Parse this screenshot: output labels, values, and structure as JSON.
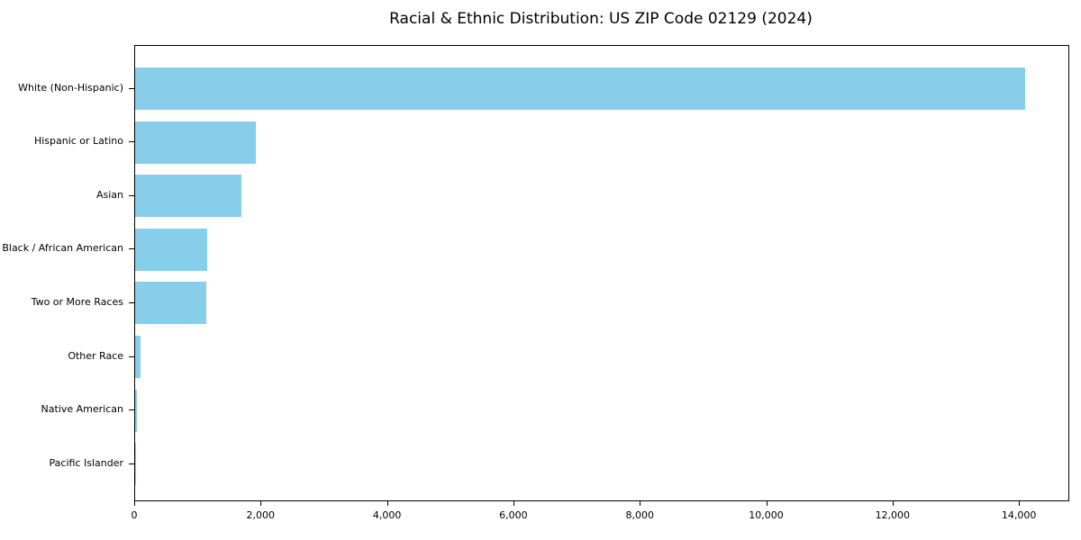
{
  "chart_data": {
    "type": "bar",
    "orientation": "horizontal",
    "title": "Racial & Ethnic Distribution: US ZIP Code 02129 (2024)",
    "categories": [
      "White (Non-Hispanic)",
      "Hispanic or Latino",
      "Asian",
      "Black / African American",
      "Two or More Races",
      "Other Race",
      "Native American",
      "Pacific Islander"
    ],
    "values": [
      14085,
      1905,
      1680,
      1140,
      1120,
      90,
      25,
      5
    ],
    "xlabel": "",
    "ylabel": "",
    "xlim": [
      0,
      14768
    ],
    "xticks": [
      0,
      2000,
      4000,
      6000,
      8000,
      10000,
      12000,
      14000
    ],
    "xtick_labels": [
      "0",
      "2,000",
      "4,000",
      "6,000",
      "8,000",
      "10,000",
      "12,000",
      "14,000"
    ],
    "bar_color": "#87CEEB",
    "spine_color": "#000000",
    "text_color": "#000000",
    "grid": false,
    "legend": "none"
  }
}
